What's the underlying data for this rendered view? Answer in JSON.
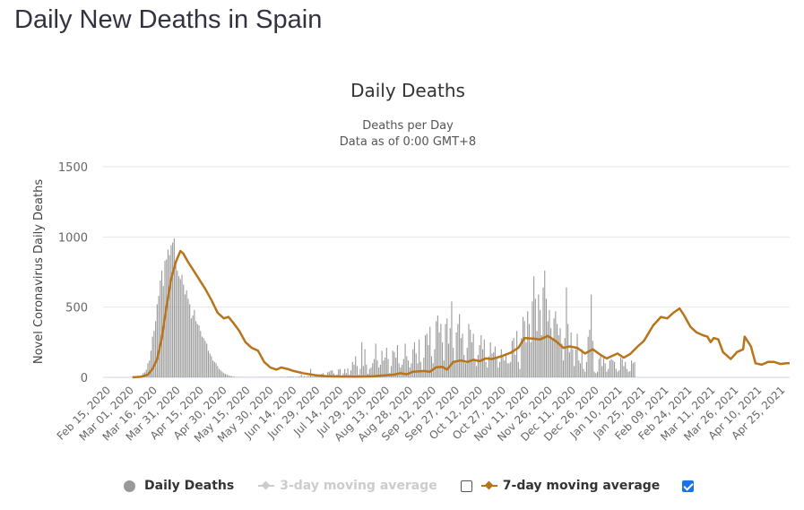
{
  "page": {
    "title": "Daily New Deaths in Spain"
  },
  "legend": {
    "items": [
      {
        "label": "Daily Deaths",
        "color": "#999999",
        "enabled": true
      },
      {
        "label": "3-day moving average",
        "color": "#cccccc",
        "enabled": false,
        "checkbox": false
      },
      {
        "label": "7-day moving average",
        "color": "#b8741a",
        "enabled": true,
        "checkbox": true
      }
    ]
  },
  "chart_data": {
    "type": "bar",
    "title": "Daily Deaths",
    "subtitle": "Deaths per Day",
    "subtitle2": "Data as of 0:00 GMT+8",
    "xlabel": "",
    "ylabel": "Novel Coronavirus Daily Deaths",
    "ylim": [
      0,
      1500
    ],
    "yticks": [
      0,
      500,
      1000,
      1500
    ],
    "grid": true,
    "legend_position": "bottom",
    "x_start": "2020-02-15",
    "x_end": "2021-04-30",
    "xtick_labels": [
      "Feb 15, 2020",
      "Mar 01, 2020",
      "Mar 16, 2020",
      "Mar 31, 2020",
      "Apr 15, 2020",
      "Apr 30, 2020",
      "May 15, 2020",
      "May 30, 2020",
      "Jun 14, 2020",
      "Jun 29, 2020",
      "Jul 14, 2020",
      "Jul 29, 2020",
      "Aug 13, 2020",
      "Aug 28, 2020",
      "Sep 12, 2020",
      "Sep 27, 2020",
      "Oct 12, 2020",
      "Oct 27, 2020",
      "Nov 11, 2020",
      "Nov 26, 2020",
      "Dec 11, 2020",
      "Dec 26, 2020",
      "Jan 10, 2021",
      "Jan 25, 2021",
      "Feb 09, 2021",
      "Feb 24, 2021",
      "Mar 11, 2021",
      "Mar 26, 2021",
      "Apr 10, 2021",
      "Apr 25, 2021"
    ],
    "series": [
      {
        "name": "Daily Deaths",
        "type": "bar",
        "color": "#999999",
        "start_date": "2020-03-03",
        "weekly_values": [
          [
            1,
            2,
            3,
            5,
            10,
            17,
            30
          ],
          [
            36,
            55,
            100,
            120,
            190,
            290,
            330
          ],
          [
            400,
            520,
            580,
            690,
            760,
            650,
            830
          ],
          [
            840,
            910,
            870,
            940,
            960,
            990,
            800
          ],
          [
            760,
            720,
            700,
            730,
            660,
            590,
            620
          ],
          [
            560,
            520,
            420,
            440,
            480,
            400,
            380
          ],
          [
            370,
            330,
            290,
            280,
            260,
            240,
            190
          ],
          [
            170,
            150,
            120,
            110,
            100,
            80,
            60
          ],
          [
            50,
            40,
            30,
            25,
            20,
            15,
            10
          ],
          [
            8,
            5,
            5,
            2,
            4,
            3,
            2
          ],
          [
            2,
            2,
            1,
            2,
            1,
            2,
            1
          ],
          [
            1,
            2,
            1,
            2,
            3,
            1,
            2
          ],
          [
            2,
            2,
            1,
            3,
            2,
            1,
            2
          ],
          [
            3,
            2,
            2,
            3,
            5,
            3,
            2
          ],
          [
            3,
            5,
            4,
            6,
            5,
            4,
            3
          ],
          [
            5,
            4,
            6,
            20,
            5,
            10,
            3
          ],
          [
            10,
            8,
            60,
            6,
            5,
            12,
            8
          ],
          [
            16,
            20,
            25,
            30,
            18,
            8,
            36
          ],
          [
            40,
            48,
            50,
            28,
            8,
            20,
            56
          ],
          [
            60,
            10,
            28,
            60,
            30,
            65,
            20
          ],
          [
            50,
            110,
            90,
            150,
            80,
            20,
            60
          ],
          [
            250,
            80,
            200,
            90,
            25,
            60,
            70
          ],
          [
            100,
            130,
            240,
            120,
            70,
            90,
            190
          ],
          [
            120,
            140,
            210,
            130,
            30,
            80,
            190
          ],
          [
            180,
            140,
            230,
            100,
            70,
            90,
            130
          ],
          [
            240,
            150,
            120,
            70,
            100,
            200,
            250
          ],
          [
            170,
            100,
            270,
            110,
            40,
            140,
            300
          ],
          [
            310,
            230,
            360,
            150,
            100,
            200,
            400
          ],
          [
            440,
            320,
            380,
            250,
            120,
            380,
            420
          ],
          [
            240,
            350,
            540,
            210,
            120,
            320,
            380
          ],
          [
            450,
            280,
            310,
            160,
            100,
            210,
            380
          ],
          [
            340,
            250,
            310,
            130,
            80,
            160,
            230
          ],
          [
            300,
            200,
            270,
            110,
            70,
            150,
            250
          ],
          [
            170,
            180,
            220,
            140,
            70,
            110,
            200
          ],
          [
            160,
            120,
            170,
            100,
            100,
            110,
            260
          ],
          [
            280,
            160,
            330,
            110,
            60,
            280,
            430
          ],
          [
            400,
            250,
            470,
            380,
            250,
            540,
            720
          ],
          [
            560,
            330,
            590,
            480,
            300,
            640,
            760
          ],
          [
            560,
            400,
            480,
            350,
            280,
            420,
            470
          ],
          [
            380,
            300,
            350,
            240,
            120,
            280,
            640
          ],
          [
            380,
            180,
            320,
            200,
            80,
            200,
            310
          ],
          [
            120,
            100,
            200,
            60,
            40,
            110,
            290
          ],
          [
            340,
            590,
            260,
            40,
            30,
            40,
            130
          ],
          [
            150,
            80,
            140,
            100,
            40,
            60,
            120
          ],
          [
            130,
            120,
            110,
            60,
            40,
            50,
            140
          ],
          [
            130,
            80,
            110,
            60,
            40,
            45,
            120
          ],
          [
            100,
            110
          ]
        ]
      },
      {
        "name": "7-day moving average",
        "type": "line",
        "color": "#b8741a",
        "points_date_value": [
          [
            "2020-03-02",
            0
          ],
          [
            "2020-03-08",
            5
          ],
          [
            "2020-03-12",
            20
          ],
          [
            "2020-03-15",
            60
          ],
          [
            "2020-03-18",
            130
          ],
          [
            "2020-03-21",
            280
          ],
          [
            "2020-03-24",
            500
          ],
          [
            "2020-03-27",
            700
          ],
          [
            "2020-03-30",
            820
          ],
          [
            "2020-04-02",
            900
          ],
          [
            "2020-04-04",
            880
          ],
          [
            "2020-04-07",
            820
          ],
          [
            "2020-04-10",
            770
          ],
          [
            "2020-04-14",
            700
          ],
          [
            "2020-04-18",
            630
          ],
          [
            "2020-04-22",
            550
          ],
          [
            "2020-04-26",
            460
          ],
          [
            "2020-04-30",
            420
          ],
          [
            "2020-05-03",
            430
          ],
          [
            "2020-05-06",
            390
          ],
          [
            "2020-05-10",
            330
          ],
          [
            "2020-05-14",
            250
          ],
          [
            "2020-05-18",
            210
          ],
          [
            "2020-05-22",
            190
          ],
          [
            "2020-05-26",
            110
          ],
          [
            "2020-05-30",
            70
          ],
          [
            "2020-06-03",
            55
          ],
          [
            "2020-06-06",
            70
          ],
          [
            "2020-06-10",
            60
          ],
          [
            "2020-06-14",
            45
          ],
          [
            "2020-06-20",
            30
          ],
          [
            "2020-06-28",
            15
          ],
          [
            "2020-07-05",
            8
          ],
          [
            "2020-07-15",
            6
          ],
          [
            "2020-07-25",
            5
          ],
          [
            "2020-08-05",
            8
          ],
          [
            "2020-08-12",
            14
          ],
          [
            "2020-08-18",
            20
          ],
          [
            "2020-08-22",
            30
          ],
          [
            "2020-08-26",
            22
          ],
          [
            "2020-08-30",
            40
          ],
          [
            "2020-09-06",
            45
          ],
          [
            "2020-09-10",
            40
          ],
          [
            "2020-09-14",
            72
          ],
          [
            "2020-09-18",
            75
          ],
          [
            "2020-09-21",
            55
          ],
          [
            "2020-09-25",
            110
          ],
          [
            "2020-09-30",
            120
          ],
          [
            "2020-10-04",
            110
          ],
          [
            "2020-10-08",
            125
          ],
          [
            "2020-10-12",
            115
          ],
          [
            "2020-10-16",
            135
          ],
          [
            "2020-10-20",
            130
          ],
          [
            "2020-10-26",
            150
          ],
          [
            "2020-11-01",
            175
          ],
          [
            "2020-11-06",
            210
          ],
          [
            "2020-11-10",
            280
          ],
          [
            "2020-11-16",
            275
          ],
          [
            "2020-11-20",
            270
          ],
          [
            "2020-11-25",
            295
          ],
          [
            "2020-11-30",
            260
          ],
          [
            "2020-12-05",
            210
          ],
          [
            "2020-12-09",
            220
          ],
          [
            "2020-12-14",
            210
          ],
          [
            "2020-12-19",
            170
          ],
          [
            "2020-12-24",
            200
          ],
          [
            "2020-12-29",
            160
          ],
          [
            "2021-01-02",
            135
          ],
          [
            "2021-01-05",
            150
          ],
          [
            "2021-01-09",
            170
          ],
          [
            "2021-01-13",
            140
          ],
          [
            "2021-01-17",
            165
          ],
          [
            "2021-01-22",
            220
          ],
          [
            "2021-01-26",
            260
          ],
          [
            "2021-02-01",
            370
          ],
          [
            "2021-02-06",
            430
          ],
          [
            "2021-02-10",
            420
          ],
          [
            "2021-02-14",
            460
          ],
          [
            "2021-02-18",
            490
          ],
          [
            "2021-02-21",
            440
          ],
          [
            "2021-02-25",
            360
          ],
          [
            "2021-03-01",
            320
          ],
          [
            "2021-03-05",
            300
          ],
          [
            "2021-03-08",
            290
          ],
          [
            "2021-03-10",
            250
          ],
          [
            "2021-03-12",
            280
          ],
          [
            "2021-03-15",
            270
          ],
          [
            "2021-03-18",
            180
          ],
          [
            "2021-03-23",
            130
          ],
          [
            "2021-03-27",
            180
          ],
          [
            "2021-03-31",
            200
          ],
          [
            "2021-04-01",
            290
          ],
          [
            "2021-04-05",
            220
          ],
          [
            "2021-04-08",
            100
          ],
          [
            "2021-04-12",
            90
          ],
          [
            "2021-04-16",
            110
          ],
          [
            "2021-04-20",
            110
          ],
          [
            "2021-04-24",
            95
          ],
          [
            "2021-04-28",
            100
          ],
          [
            "2021-04-30",
            100
          ]
        ]
      },
      {
        "name": "3-day moving average",
        "type": "line",
        "color": "#cccccc",
        "visible": false
      }
    ]
  }
}
